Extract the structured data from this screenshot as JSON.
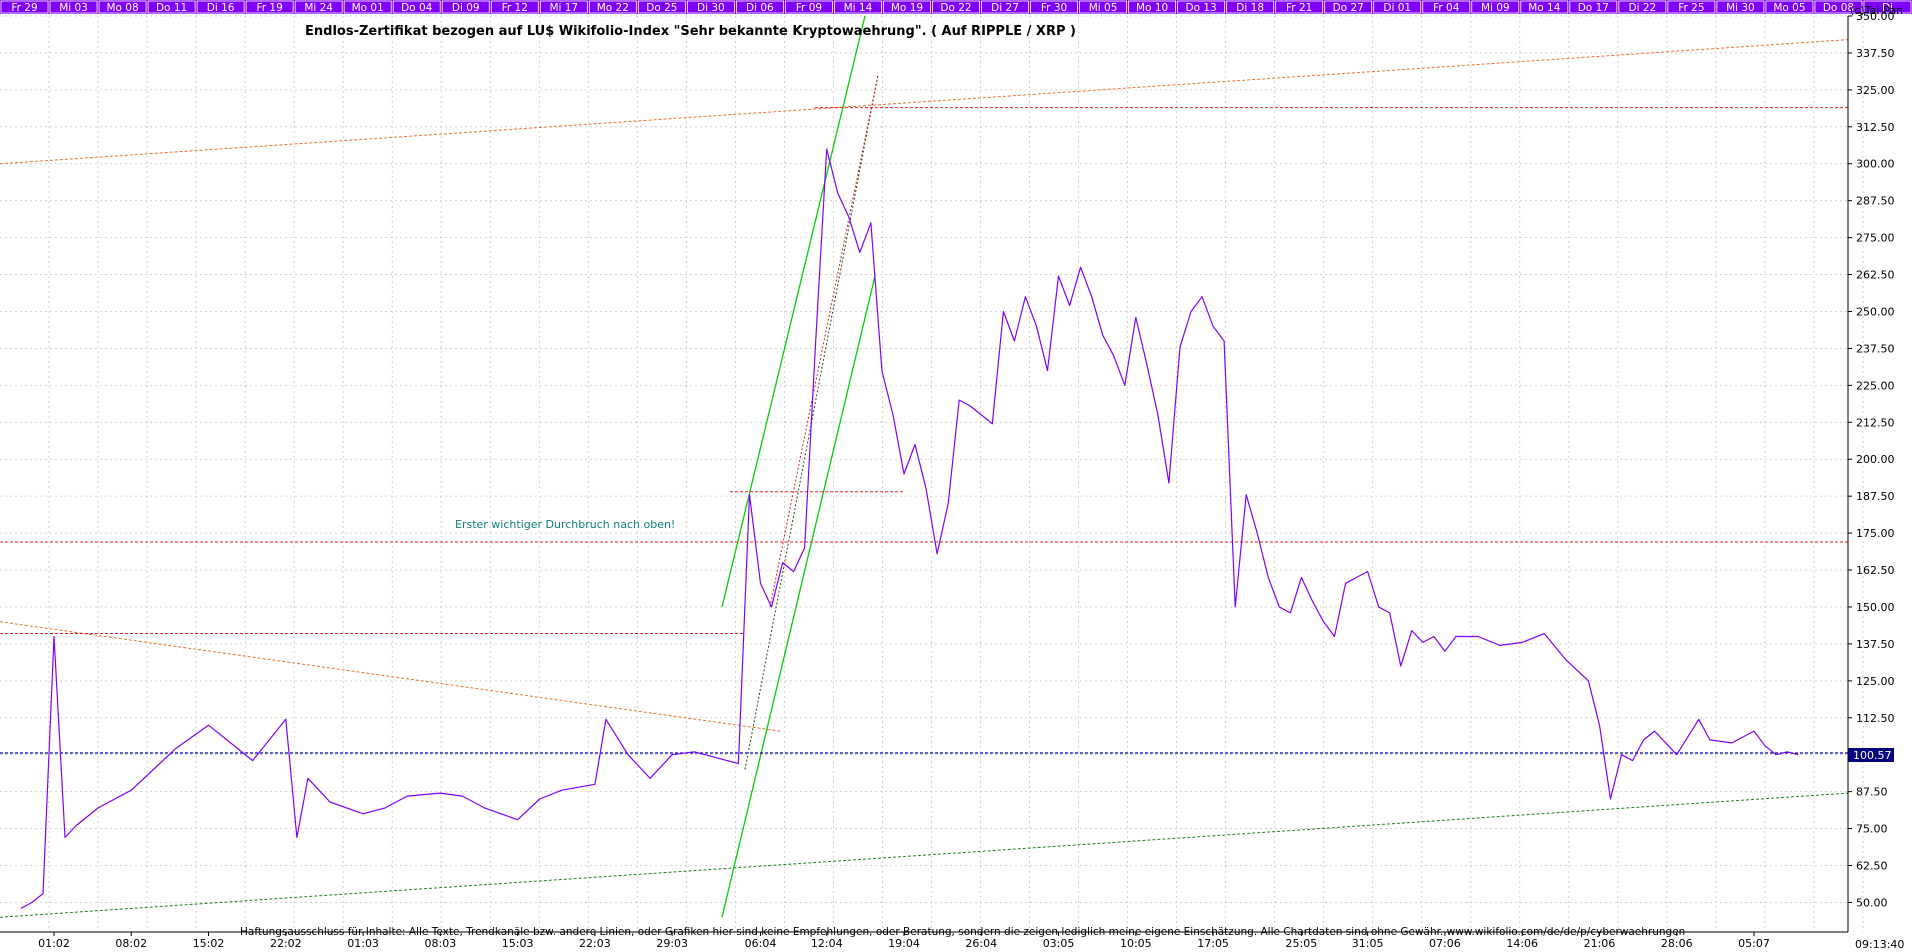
{
  "copyright": "(c)Tai-Pan",
  "title": "Endlos-Zertifikat bezogen auf LU$ Wikifolio-Index \"Sehr bekannte Kryptowaehrung\". ( Auf RIPPLE / XRP )",
  "annotation": "Erster wichtiger Durchbruch nach oben!",
  "disclaimer": "Haftungsausschluss für Inhalte: Alle Texte, Trendkanäle bzw. andere Linien, oder Grafiken hier sind keine Empfehlungen, oder Beratung, sondern die zeigen lediglich meine eigene Einschätzung. Alle Chartdaten sind ohne Gewähr.  www.wikifolio.com/de/de/p/cyberwaehrungen",
  "time": "09:13:40",
  "current_value": "100.57",
  "top_date_labels": [
    "Fr 29",
    "Mi 03",
    "Mo 08",
    "Do 11",
    "Di 16",
    "Fr 19",
    "Mi 24",
    "Mo 01",
    "Do 04",
    "Di 09",
    "Fr 12",
    "Mi 17",
    "Mo 22",
    "Do 25",
    "Di 30",
    "Di 06",
    "Fr 09",
    "Mi 14",
    "Mo 19",
    "Do 22",
    "Di 27",
    "Fr 30",
    "Mi 05",
    "Mo 10",
    "Do 13",
    "Di 18",
    "Fr 21",
    "Do 27",
    "Di 01",
    "Fr 04",
    "Mi 09",
    "Mo 14",
    "Do 17",
    "Di 22",
    "Fr 25",
    "Mi 30",
    "Mo 05",
    "Do 08",
    "Di"
  ],
  "colors": {
    "price_line": "#8000ff",
    "header_band": "#8000ff",
    "grid": "#c8c8c8",
    "horizontal_support": "#e02020",
    "current_value_line": "#0000c0",
    "long_trend": "#f07030",
    "channel": "#00d000",
    "lower_trend": "#208020",
    "annotation": "#108080"
  },
  "chart_data": {
    "type": "line",
    "title": "Endlos-Zertifikat bezogen auf LU$ Wikifolio-Index \"Sehr bekannte Kryptowaehrung\". ( Auf RIPPLE / XRP )",
    "xlabel": "",
    "ylabel": "",
    "ylim": [
      40,
      350
    ],
    "y_ticks": [
      "50.00",
      "62.50",
      "75.00",
      "87.50",
      "100.00",
      "112.50",
      "125.00",
      "137.50",
      "150.00",
      "162.50",
      "175.00",
      "187.50",
      "200.00",
      "212.50",
      "225.00",
      "237.50",
      "250.00",
      "262.50",
      "275.00",
      "287.50",
      "300.00",
      "312.50",
      "325.00",
      "337.50",
      "350.00"
    ],
    "x_ticks": [
      "01:02",
      "08:02",
      "15:02",
      "22:02",
      "01:03",
      "08:03",
      "15:03",
      "22:03",
      "29:03",
      "06:04",
      "12:04",
      "19:04",
      "26:04",
      "03:05",
      "10:05",
      "17:05",
      "25:05",
      "31:05",
      "07:06",
      "14:06",
      "21:06",
      "28:06",
      "05:07"
    ],
    "grid": true,
    "horizontal_lines": [
      {
        "name": "",
        "value": 319
      },
      {
        "name": "",
        "value": 189
      },
      {
        "name": "",
        "value": 172
      },
      {
        "name": "",
        "value": 141
      },
      {
        "name": "",
        "value": 100.57
      }
    ],
    "series": [
      {
        "name": "",
        "x": [
          "29:01",
          "30:01",
          "31:01",
          "01:02",
          "02:02",
          "03:02",
          "05:02",
          "08:02",
          "10:02",
          "12:02",
          "15:02",
          "17:02",
          "19:02",
          "22:02",
          "23:02",
          "24:02",
          "26:02",
          "01:03",
          "03:03",
          "05:03",
          "08:03",
          "10:03",
          "12:03",
          "15:03",
          "17:03",
          "19:03",
          "22:03",
          "23:03",
          "25:03",
          "27:03",
          "29:03",
          "31:03",
          "02:04",
          "04:04",
          "05:04",
          "06:04",
          "07:04",
          "08:04",
          "09:04",
          "10:04",
          "11:04",
          "12:04",
          "13:04",
          "14:04",
          "15:04",
          "16:04",
          "17:04",
          "18:04",
          "19:04",
          "20:04",
          "21:04",
          "22:04",
          "23:04",
          "24:04",
          "25:04",
          "26:04",
          "27:04",
          "28:04",
          "29:04",
          "30:04",
          "01:05",
          "02:05",
          "03:05",
          "04:05",
          "05:05",
          "06:05",
          "07:05",
          "08:05",
          "09:05",
          "10:05",
          "11:05",
          "12:05",
          "13:05",
          "14:05",
          "15:05",
          "16:05",
          "17:05",
          "18:05",
          "19:05",
          "20:05",
          "21:05",
          "22:05",
          "23:05",
          "24:05",
          "25:05",
          "26:05",
          "27:05",
          "28:05",
          "29:05",
          "30:05",
          "31:05",
          "01:06",
          "02:06",
          "03:06",
          "04:06",
          "05:06",
          "06:06",
          "07:06",
          "08:06",
          "10:06",
          "12:06",
          "14:06",
          "16:06",
          "18:06",
          "20:06",
          "21:06",
          "22:06",
          "23:06",
          "24:06",
          "25:06",
          "26:06",
          "28:06",
          "30:06",
          "01:07",
          "03:07",
          "05:07",
          "06:07",
          "07:07",
          "08:07",
          "09:07"
        ],
        "values": [
          48,
          50,
          53,
          140,
          72,
          76,
          82,
          88,
          95,
          102,
          110,
          104,
          98,
          112,
          72,
          92,
          84,
          80,
          82,
          86,
          87,
          86,
          82,
          78,
          85,
          88,
          90,
          112,
          100,
          92,
          100,
          101,
          99,
          97,
          188,
          158,
          150,
          165,
          162,
          170,
          240,
          305,
          290,
          282,
          270,
          280,
          230,
          215,
          195,
          205,
          190,
          168,
          185,
          220,
          218,
          215,
          212,
          250,
          240,
          255,
          245,
          230,
          262,
          252,
          265,
          255,
          242,
          235,
          225,
          248,
          232,
          215,
          192,
          238,
          250,
          255,
          245,
          240,
          150,
          188,
          175,
          160,
          150,
          148,
          160,
          152,
          145,
          140,
          158,
          160,
          162,
          150,
          148,
          130,
          142,
          138,
          140,
          135,
          140,
          140,
          137,
          138,
          141,
          132,
          125,
          110,
          85,
          100,
          98,
          105,
          108,
          100,
          112,
          105,
          104,
          108,
          103,
          100,
          101,
          100
        ]
      }
    ]
  }
}
